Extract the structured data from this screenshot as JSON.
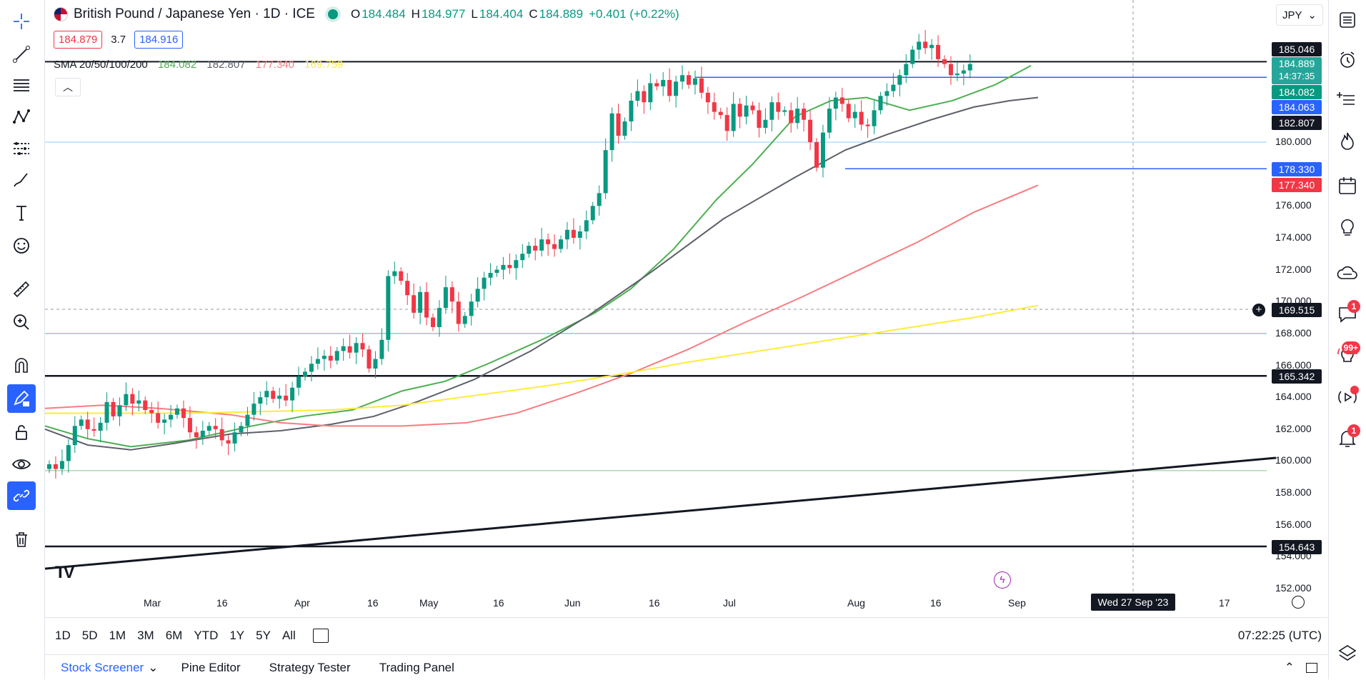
{
  "header": {
    "title": "British Pound / Japanese Yen · 1D · ICE",
    "open_label": "O",
    "open": "184.484",
    "high_label": "H",
    "high": "184.977",
    "low_label": "L",
    "low": "184.404",
    "close_label": "C",
    "close": "184.889",
    "change": "+0.401 (+0.22%)",
    "sell_price": "184.879",
    "spread": "3.7",
    "buy_price": "184.916",
    "currency": "JPY"
  },
  "sma": {
    "label": "SMA 20/50/100/200",
    "v20": "184.082",
    "v50": "182.807",
    "v100": "177.340",
    "v200": "169.759"
  },
  "colors": {
    "up": "#089981",
    "down": "#f23645",
    "sma20": "#4caf50",
    "sma50": "#5d606b",
    "sma100": "#f77c80",
    "sma200": "#ffeb3b",
    "accent": "#2962ff"
  },
  "price_axis": [
    "180.000",
    "176.000",
    "174.000",
    "172.000",
    "170.000",
    "168.000",
    "166.000",
    "164.000",
    "162.000",
    "160.000",
    "158.000",
    "156.000",
    "154.000",
    "152.000"
  ],
  "price_tags": {
    "t1": "185.046",
    "last": "184.889",
    "countdown": "14:37:35",
    "sma20": "184.082",
    "blue1": "184.063",
    "sma50": "182.807",
    "blue2": "178.330",
    "sma100": "177.340",
    "cross": "169.515",
    "black1": "165.342",
    "black2": "154.643"
  },
  "time_axis": [
    "Mar",
    "16",
    "Apr",
    "16",
    "May",
    "16",
    "Jun",
    "16",
    "Jul",
    "Aug",
    "16",
    "Sep",
    "17"
  ],
  "crosshair_date": "Wed 27 Sep '23",
  "ranges": [
    "1D",
    "5D",
    "1M",
    "3M",
    "6M",
    "YTD",
    "1Y",
    "5Y",
    "All"
  ],
  "clock": "07:22:25 (UTC)",
  "bottom_tabs": [
    "Stock Screener",
    "Pine Editor",
    "Strategy Tester",
    "Trading Panel"
  ],
  "right_badges": {
    "chat": "1",
    "ideas": "99+",
    "alerts": "1"
  },
  "logo_text": "TV"
}
